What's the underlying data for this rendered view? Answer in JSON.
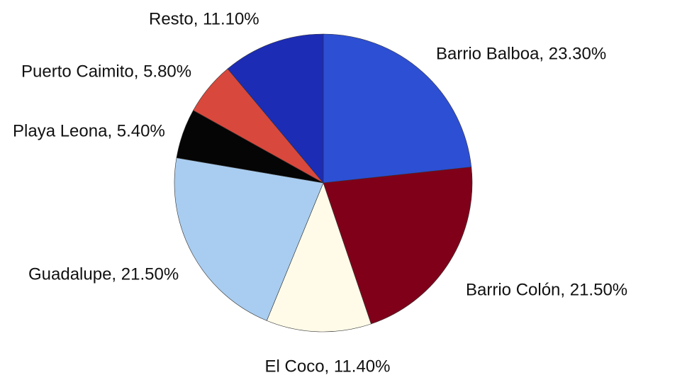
{
  "chart_data": {
    "type": "pie",
    "labels": [
      "Barrio Balboa, 23.30%",
      "Barrio Colón, 21.50%",
      "El Coco, 11.40%",
      "Guadalupe, 21.50%",
      "Playa Leona, 5.40%",
      "Puerto Caimito, 5.80%",
      "Resto, 11.10%"
    ],
    "values": [
      23.3,
      21.5,
      11.4,
      21.5,
      5.4,
      5.8,
      11.1
    ],
    "colors": [
      "#2d4fd4",
      "#80001a",
      "#fffbe8",
      "#a9cdf0",
      "#050505",
      "#d9483c",
      "#1c2cb5"
    ]
  }
}
